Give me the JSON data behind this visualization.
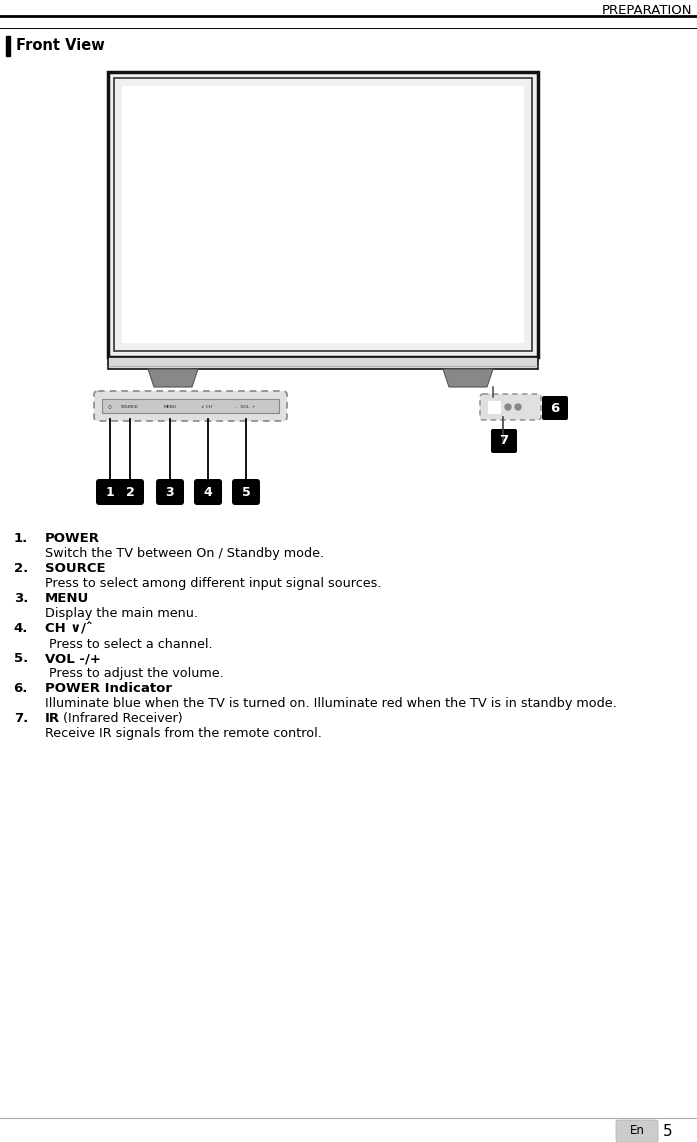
{
  "page_width": 6.97,
  "page_height": 11.42,
  "bg_color": "#ffffff",
  "header_text": "PREPARATION",
  "section_title": "Front View",
  "items": [
    {
      "num": "1.",
      "bold": "POWER",
      "normal": "Switch the TV between On / Standby mode."
    },
    {
      "num": "2.",
      "bold": "SOURCE",
      "normal": "Press to select among different input signal sources."
    },
    {
      "num": "3.",
      "bold": "MENU",
      "normal": "Display the main menu."
    },
    {
      "num": "4.",
      "bold": "CH ∨/ˆ",
      "normal": " Press to select a channel."
    },
    {
      "num": "5.",
      "bold": "VOL -/+",
      "normal": " Press to adjust the volume."
    },
    {
      "num": "6.",
      "bold": "POWER Indicator",
      "normal": "Illuminate blue when the TV is turned on. Illuminate red when the TV is in standby mode."
    },
    {
      "num": "7.",
      "bold": "IR",
      "normal_inline": " (Infrared Receiver)",
      "normal": "Receive IR signals from the remote control."
    }
  ]
}
